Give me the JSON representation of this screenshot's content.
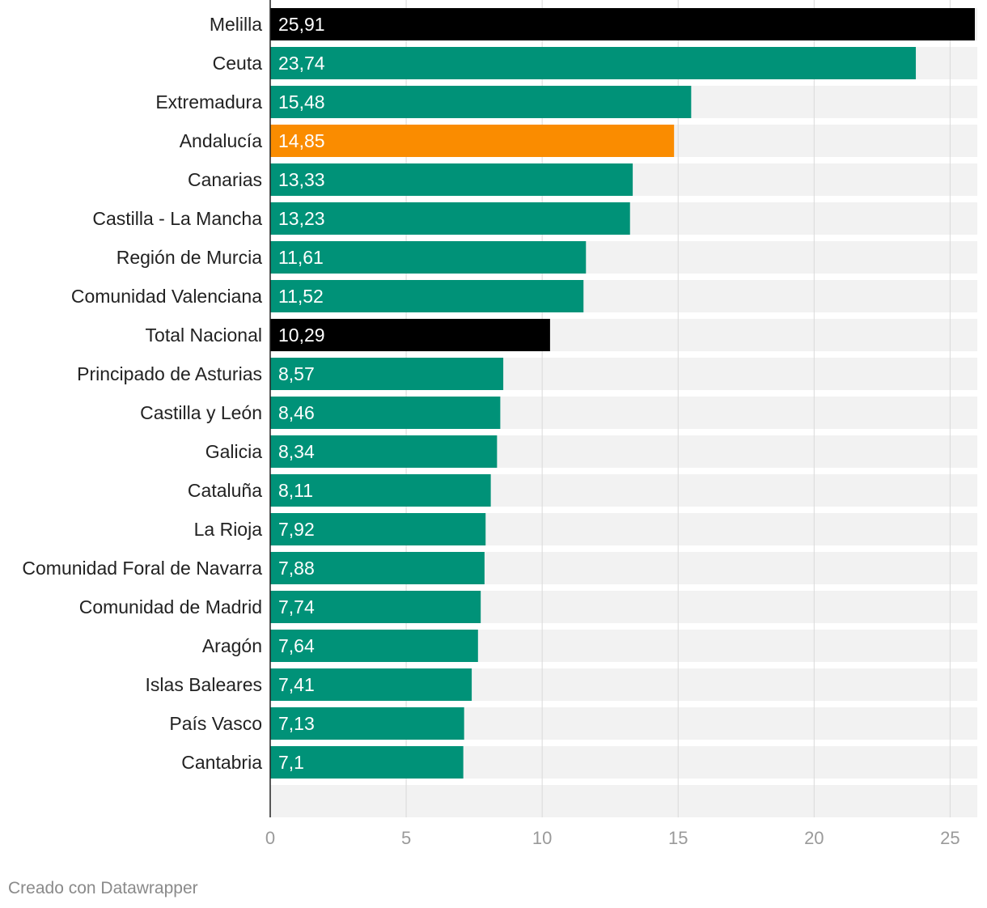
{
  "chart_data": {
    "type": "bar",
    "orientation": "horizontal",
    "categories": [
      "Melilla",
      "Ceuta",
      "Extremadura",
      "Andalucía",
      "Canarias",
      "Castilla - La Mancha",
      "Región de Murcia",
      "Comunidad Valenciana",
      "Total Nacional",
      "Principado de Asturias",
      "Castilla y León",
      "Galicia",
      "Cataluña",
      "La Rioja",
      "Comunidad Foral de Navarra",
      "Comunidad de Madrid",
      "Aragón",
      "Islas Baleares",
      "País Vasco",
      "Cantabria"
    ],
    "values": [
      25.91,
      23.74,
      15.48,
      14.85,
      13.33,
      13.23,
      11.61,
      11.52,
      10.29,
      8.57,
      8.46,
      8.34,
      8.11,
      7.92,
      7.88,
      7.74,
      7.64,
      7.41,
      7.13,
      7.1
    ],
    "value_labels": [
      "25,91",
      "23,74",
      "15,48",
      "14,85",
      "13,33",
      "13,23",
      "11,61",
      "11,52",
      "10,29",
      "8,57",
      "8,46",
      "8,34",
      "8,11",
      "7,92",
      "7,88",
      "7,74",
      "7,64",
      "7,41",
      "7,13",
      "7,1"
    ],
    "bar_colors": [
      "#000000",
      "#009278",
      "#009278",
      "#fa8c00",
      "#009278",
      "#009278",
      "#009278",
      "#009278",
      "#000000",
      "#009278",
      "#009278",
      "#009278",
      "#009278",
      "#009278",
      "#009278",
      "#009278",
      "#009278",
      "#009278",
      "#009278",
      "#009278"
    ],
    "xlim": [
      0,
      26
    ],
    "x_ticks": [
      0,
      5,
      10,
      15,
      20,
      25
    ],
    "x_tick_labels": [
      "0",
      "5",
      "10",
      "15",
      "20",
      "25"
    ],
    "grid": true,
    "background_band_color": "#f2f2f2",
    "title": "",
    "xlabel": "",
    "ylabel": ""
  },
  "footer": {
    "credit": "Creado con Datawrapper"
  }
}
